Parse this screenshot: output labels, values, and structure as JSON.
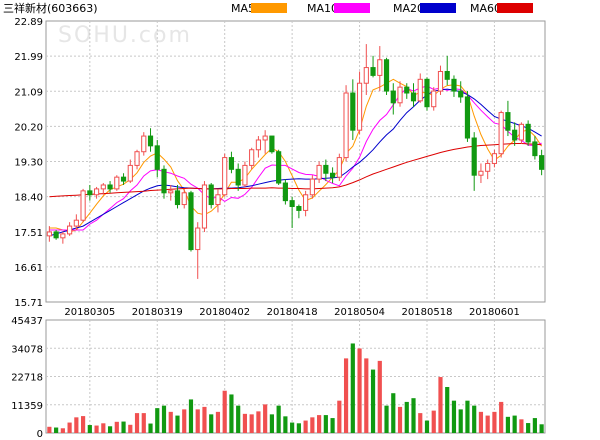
{
  "header": {
    "title": "三祥新材(603663)",
    "watermark": "SOHU.com"
  },
  "legend": [
    {
      "label": "MA5",
      "color": "#ff9900"
    },
    {
      "label": "MA10",
      "color": "#ff00ff"
    },
    {
      "label": "MA20",
      "color": "#0000cc"
    },
    {
      "label": "MA60",
      "color": "#dd0000"
    }
  ],
  "colors": {
    "up": "#f05050",
    "down": "#119911",
    "grid": "#c8c8c8",
    "frame": "#999999"
  },
  "chart_data": {
    "type": "candlestick",
    "title": "三祥新材(603663)",
    "price_ticks": [
      "22.89",
      "21.99",
      "21.09",
      "20.20",
      "19.30",
      "18.40",
      "17.51",
      "16.61",
      "15.71"
    ],
    "volume_ticks": [
      "45437",
      "34078",
      "22718",
      "11359",
      "0"
    ],
    "price_range": [
      15.71,
      22.89
    ],
    "volume_range": [
      0,
      45437
    ],
    "x_labels": [
      "20180305",
      "20180319",
      "20180402",
      "20180418",
      "20180504",
      "20180518",
      "20180601"
    ],
    "x_label_index": [
      6,
      16,
      26,
      36,
      46,
      56,
      66
    ],
    "grid": true,
    "legend_position": "top",
    "ohlc": [
      [
        17.4,
        17.65,
        17.25,
        17.5
      ],
      [
        17.5,
        17.55,
        17.3,
        17.35
      ],
      [
        17.35,
        17.5,
        17.2,
        17.45
      ],
      [
        17.45,
        17.75,
        17.4,
        17.65
      ],
      [
        17.65,
        17.95,
        17.55,
        17.8
      ],
      [
        17.8,
        18.6,
        17.75,
        18.55
      ],
      [
        18.55,
        18.7,
        18.3,
        18.45
      ],
      [
        18.45,
        18.65,
        18.35,
        18.6
      ],
      [
        18.6,
        18.75,
        18.45,
        18.7
      ],
      [
        18.7,
        18.8,
        18.5,
        18.6
      ],
      [
        18.6,
        18.95,
        18.55,
        18.9
      ],
      [
        18.9,
        19.0,
        18.7,
        18.8
      ],
      [
        18.8,
        19.35,
        18.75,
        19.2
      ],
      [
        19.2,
        19.6,
        19.1,
        19.55
      ],
      [
        19.55,
        20.05,
        19.45,
        19.95
      ],
      [
        19.95,
        20.15,
        19.55,
        19.7
      ],
      [
        19.7,
        19.85,
        18.9,
        19.1
      ],
      [
        19.1,
        19.2,
        18.35,
        18.5
      ],
      [
        18.5,
        18.7,
        18.3,
        18.55
      ],
      [
        18.55,
        18.7,
        18.1,
        18.2
      ],
      [
        18.2,
        18.6,
        18.1,
        18.5
      ],
      [
        18.5,
        18.55,
        17.0,
        17.05
      ],
      [
        17.05,
        17.75,
        16.3,
        17.6
      ],
      [
        17.6,
        18.8,
        17.5,
        18.7
      ],
      [
        18.7,
        18.75,
        18.1,
        18.2
      ],
      [
        18.2,
        18.6,
        18.0,
        18.45
      ],
      [
        18.45,
        19.5,
        18.4,
        19.4
      ],
      [
        19.4,
        19.55,
        19.0,
        19.1
      ],
      [
        19.1,
        19.25,
        18.55,
        18.7
      ],
      [
        18.7,
        19.3,
        18.65,
        19.2
      ],
      [
        19.2,
        19.65,
        19.1,
        19.6
      ],
      [
        19.6,
        19.95,
        19.4,
        19.85
      ],
      [
        19.85,
        20.1,
        19.5,
        19.95
      ],
      [
        19.95,
        19.95,
        19.5,
        19.55
      ],
      [
        19.55,
        19.6,
        18.7,
        18.75
      ],
      [
        18.75,
        18.85,
        18.2,
        18.3
      ],
      [
        18.3,
        18.4,
        17.6,
        18.15
      ],
      [
        18.15,
        18.2,
        17.85,
        18.05
      ],
      [
        18.05,
        18.55,
        17.9,
        18.45
      ],
      [
        18.45,
        18.95,
        18.35,
        18.85
      ],
      [
        18.85,
        19.3,
        18.75,
        19.2
      ],
      [
        19.2,
        19.35,
        18.8,
        19.0
      ],
      [
        19.0,
        19.15,
        18.75,
        18.9
      ],
      [
        18.9,
        19.5,
        18.8,
        19.4
      ],
      [
        19.4,
        21.25,
        19.3,
        21.05
      ],
      [
        21.05,
        21.4,
        19.85,
        20.1
      ],
      [
        20.1,
        21.6,
        20.0,
        21.3
      ],
      [
        21.3,
        22.3,
        21.0,
        21.7
      ],
      [
        21.7,
        22.0,
        21.45,
        21.5
      ],
      [
        21.5,
        22.25,
        21.1,
        21.9
      ],
      [
        21.9,
        21.95,
        21.0,
        21.1
      ],
      [
        21.1,
        21.3,
        20.5,
        20.8
      ],
      [
        20.8,
        21.35,
        20.7,
        21.2
      ],
      [
        21.2,
        21.3,
        20.9,
        21.05
      ],
      [
        21.05,
        21.3,
        20.7,
        20.85
      ],
      [
        20.85,
        21.55,
        20.8,
        21.4
      ],
      [
        21.4,
        21.45,
        20.6,
        20.7
      ],
      [
        20.7,
        21.2,
        20.6,
        21.1
      ],
      [
        21.1,
        21.75,
        21.0,
        21.6
      ],
      [
        21.6,
        22.0,
        21.25,
        21.4
      ],
      [
        21.4,
        21.5,
        20.95,
        21.1
      ],
      [
        21.1,
        21.35,
        20.8,
        20.95
      ],
      [
        20.95,
        21.1,
        19.8,
        19.9
      ],
      [
        19.9,
        20.05,
        18.55,
        18.95
      ],
      [
        18.95,
        19.25,
        18.75,
        19.05
      ],
      [
        19.05,
        19.35,
        18.85,
        19.25
      ],
      [
        19.25,
        19.6,
        19.15,
        19.5
      ],
      [
        19.5,
        20.6,
        19.4,
        20.55
      ],
      [
        20.55,
        20.85,
        19.95,
        20.1
      ],
      [
        20.1,
        20.3,
        19.7,
        19.85
      ],
      [
        19.85,
        20.3,
        19.75,
        20.25
      ],
      [
        20.25,
        20.35,
        19.7,
        19.8
      ],
      [
        19.8,
        19.95,
        19.35,
        19.45
      ],
      [
        19.45,
        19.6,
        18.95,
        19.1
      ]
    ],
    "volume": [
      2500,
      2200,
      1900,
      4200,
      6300,
      6800,
      3200,
      3000,
      3900,
      2700,
      4500,
      4600,
      3300,
      8000,
      8000,
      3800,
      10000,
      11000,
      8500,
      7000,
      9500,
      13500,
      9500,
      10500,
      7500,
      8500,
      17000,
      15500,
      11000,
      7700,
      7500,
      8700,
      11500,
      7500,
      11000,
      6700,
      4200,
      3900,
      5000,
      6300,
      7200,
      7200,
      6000,
      13000,
      30000,
      36000,
      34000,
      30000,
      25500,
      29000,
      11000,
      16000,
      10500,
      12500,
      14000,
      8000,
      5000,
      9000,
      22500,
      18500,
      13000,
      9500,
      13000,
      11000,
      8500,
      7000,
      8500,
      12500,
      6500,
      7000,
      5500,
      4000,
      6000,
      3500
    ],
    "ma5": [
      17.6,
      17.6,
      17.55,
      17.5,
      17.55,
      17.76,
      17.98,
      18.21,
      18.42,
      18.58,
      18.65,
      18.72,
      18.84,
      19.01,
      19.28,
      19.44,
      19.52,
      19.36,
      19.16,
      18.81,
      18.57,
      18.16,
      17.98,
      17.94,
      18.03,
      18.19,
      18.49,
      18.77,
      18.77,
      18.87,
      19.1,
      19.29,
      19.48,
      19.64,
      19.55,
      19.3,
      18.94,
      18.57,
      18.3,
      18.37,
      18.54,
      18.71,
      18.9,
      19.08,
      19.51,
      19.69,
      20.11,
      20.71,
      21.13,
      21.2,
      21.3,
      21.4,
      21.3,
      21.21,
      21.0,
      21.06,
      21.06,
      20.98,
      21.15,
      21.24,
      21.26,
      21.23,
      21.02,
      20.46,
      19.99,
      19.62,
      19.33,
      19.46,
      19.69,
      19.85,
      20.06,
      20.11,
      19.95,
      19.69
    ],
    "ma10": [
      17.55,
      17.55,
      17.55,
      17.55,
      17.55,
      17.55,
      17.7,
      17.8,
      17.95,
      18.1,
      18.25,
      18.35,
      18.55,
      18.7,
      18.93,
      19.06,
      19.09,
      19.04,
      19.0,
      18.93,
      18.87,
      18.72,
      18.62,
      18.45,
      18.35,
      18.4,
      18.28,
      18.38,
      18.36,
      18.46,
      18.64,
      18.89,
      19.13,
      19.21,
      19.2,
      19.2,
      19.11,
      19.02,
      18.97,
      18.96,
      18.92,
      18.82,
      18.74,
      18.68,
      18.93,
      19.13,
      19.41,
      19.81,
      20.12,
      20.35,
      20.5,
      20.75,
      21.01,
      21.17,
      21.1,
      21.18,
      21.23,
      21.14,
      21.18,
      21.12,
      21.16,
      21.14,
      21.0,
      20.8,
      20.61,
      20.44,
      20.28,
      20.24,
      20.07,
      19.92,
      19.84,
      19.72,
      19.71,
      19.77
    ],
    "ma20": [
      17.4,
      17.45,
      17.5,
      17.55,
      17.6,
      17.65,
      17.75,
      17.85,
      17.95,
      18.05,
      18.15,
      18.25,
      18.35,
      18.45,
      18.55,
      18.62,
      18.68,
      18.7,
      18.68,
      18.65,
      18.63,
      18.62,
      18.61,
      18.6,
      18.6,
      18.61,
      18.62,
      18.62,
      18.63,
      18.65,
      18.68,
      18.72,
      18.76,
      18.8,
      18.82,
      18.84,
      18.85,
      18.86,
      18.85,
      18.85,
      18.86,
      18.87,
      18.88,
      18.9,
      19.02,
      19.16,
      19.28,
      19.43,
      19.6,
      19.8,
      19.98,
      20.13,
      20.35,
      20.55,
      20.7,
      20.87,
      21.0,
      21.1,
      21.13,
      21.15,
      21.12,
      21.08,
      21.01,
      20.9,
      20.76,
      20.6,
      20.45,
      20.38,
      20.33,
      20.27,
      20.21,
      20.15,
      20.05,
      19.95
    ],
    "ma60": [
      18.4,
      18.41,
      18.42,
      18.43,
      18.44,
      18.45,
      18.46,
      18.47,
      18.48,
      18.49,
      18.5,
      18.51,
      18.52,
      18.53,
      18.54,
      18.56,
      18.57,
      18.58,
      18.59,
      18.6,
      18.61,
      18.62,
      18.61,
      18.6,
      18.6,
      18.6,
      18.6,
      18.61,
      18.61,
      18.61,
      18.62,
      18.62,
      18.62,
      18.63,
      18.62,
      18.62,
      18.61,
      18.61,
      18.6,
      18.6,
      18.61,
      18.62,
      18.63,
      18.65,
      18.7,
      18.76,
      18.83,
      18.91,
      18.98,
      19.04,
      19.1,
      19.16,
      19.22,
      19.28,
      19.33,
      19.38,
      19.43,
      19.48,
      19.53,
      19.57,
      19.61,
      19.64,
      19.67,
      19.69,
      19.71,
      19.72,
      19.73,
      19.74,
      19.75,
      19.76,
      19.76,
      19.75,
      19.74,
      19.73
    ]
  }
}
